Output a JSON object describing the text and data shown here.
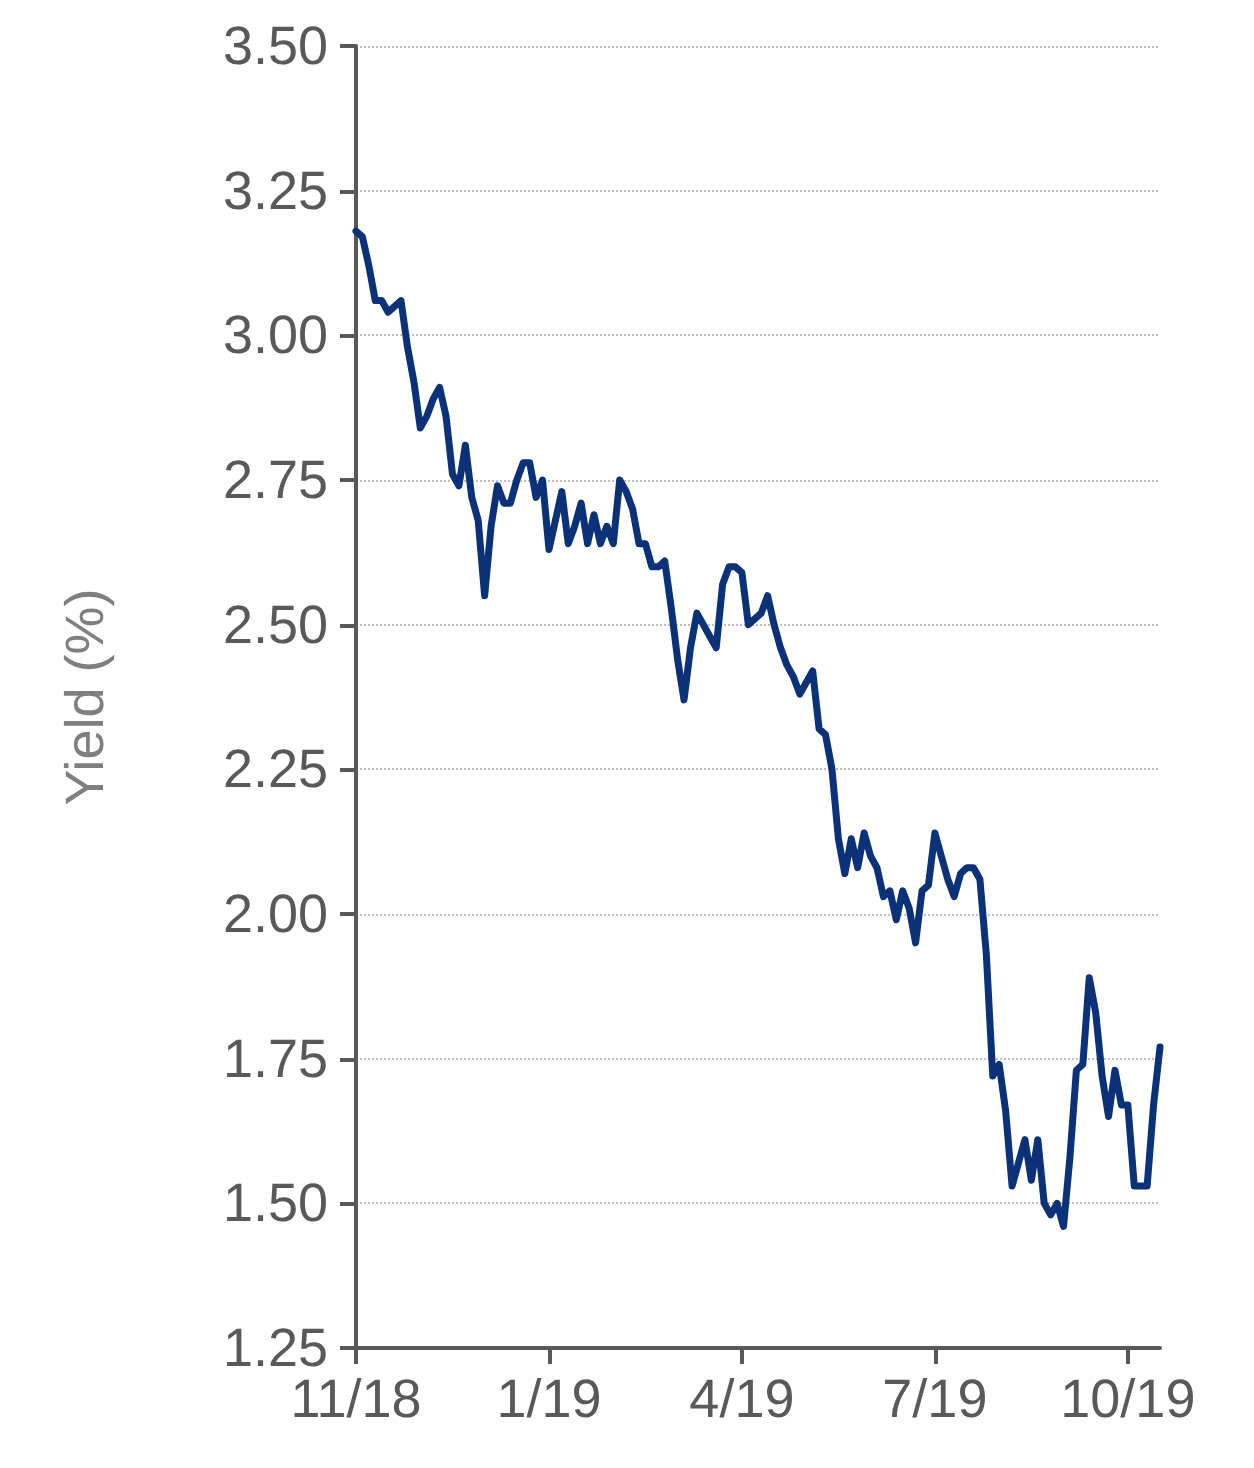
{
  "chart_data": {
    "type": "line",
    "ylabel": "Yield (%)",
    "categories": [
      "11/18",
      null,
      null,
      null,
      null,
      null,
      null,
      null,
      null,
      null,
      null,
      null,
      null,
      null,
      null,
      null,
      null,
      null,
      null,
      null,
      null,
      null,
      null,
      null,
      null,
      null,
      null,
      null,
      null,
      null,
      "1/19",
      null,
      null,
      null,
      null,
      null,
      null,
      null,
      null,
      null,
      null,
      null,
      null,
      null,
      null,
      null,
      null,
      null,
      null,
      null,
      null,
      null,
      null,
      null,
      null,
      null,
      null,
      null,
      null,
      null,
      "4/19",
      null,
      null,
      null,
      null,
      null,
      null,
      null,
      null,
      null,
      null,
      null,
      null,
      null,
      null,
      null,
      null,
      null,
      null,
      null,
      null,
      null,
      null,
      null,
      null,
      null,
      null,
      null,
      null,
      null,
      "7/19",
      null,
      null,
      null,
      null,
      null,
      null,
      null,
      null,
      null,
      null,
      null,
      null,
      null,
      null,
      null,
      null,
      null,
      null,
      null,
      null,
      null,
      null,
      null,
      null,
      null,
      null,
      null,
      null,
      null,
      "10/19",
      null,
      null,
      null,
      null,
      null
    ],
    "ylim": [
      1.25,
      3.5
    ],
    "yticks": [
      1.25,
      {
        "value": 1.5,
        "label": "1.50"
      },
      1.75,
      {
        "value": 2,
        "label": "2.00"
      },
      2.25,
      {
        "value": 2.5,
        "label": "2.50"
      },
      2.75,
      {
        "value": 3,
        "label": "3.00"
      },
      3.25,
      {
        "value": 3.5,
        "label": "3.50"
      }
    ],
    "grid": "y",
    "marker": "none",
    "line_style": "solid",
    "series": [
      {
        "color": "#0b3278",
        "values": [
          3.18,
          3.17,
          3.12,
          3.06,
          3.06,
          3.04,
          3.05,
          3.06,
          2.98,
          2.92,
          2.84,
          2.86,
          2.89,
          2.91,
          2.86,
          2.76,
          2.74,
          2.81,
          2.72,
          2.68,
          2.55,
          2.67,
          2.74,
          2.71,
          2.71,
          2.75,
          2.78,
          2.78,
          2.72,
          2.75,
          2.63,
          2.68,
          2.73,
          2.64,
          2.67,
          2.71,
          2.64,
          2.69,
          2.64,
          2.67,
          2.64,
          2.75,
          2.73,
          2.7,
          2.64,
          2.64,
          2.6,
          2.6,
          2.61,
          2.53,
          2.44,
          2.37,
          2.46,
          2.52,
          2.5,
          2.48,
          2.46,
          2.57,
          2.6,
          2.6,
          2.59,
          2.5,
          2.51,
          2.52,
          2.55,
          2.5,
          2.46,
          2.43,
          2.41,
          2.38,
          2.4,
          2.42,
          2.32,
          2.31,
          2.25,
          2.13,
          2.07,
          2.13,
          2.08,
          2.14,
          2.1,
          2.08,
          2.03,
          2.04,
          1.99,
          2.04,
          2.01,
          1.95,
          2.04,
          2.05,
          2.14,
          2.1,
          2.06,
          2.03,
          2.07,
          2.08,
          2.08,
          2.06,
          1.93,
          1.72,
          1.74,
          1.66,
          1.53,
          1.57,
          1.61,
          1.54,
          1.61,
          1.5,
          1.48,
          1.5,
          1.46,
          1.58,
          1.73,
          1.74,
          1.89,
          1.83,
          1.72,
          1.65,
          1.73,
          1.67,
          1.67,
          1.53,
          1.53,
          1.53,
          1.67,
          1.77
        ]
      }
    ]
  }
}
